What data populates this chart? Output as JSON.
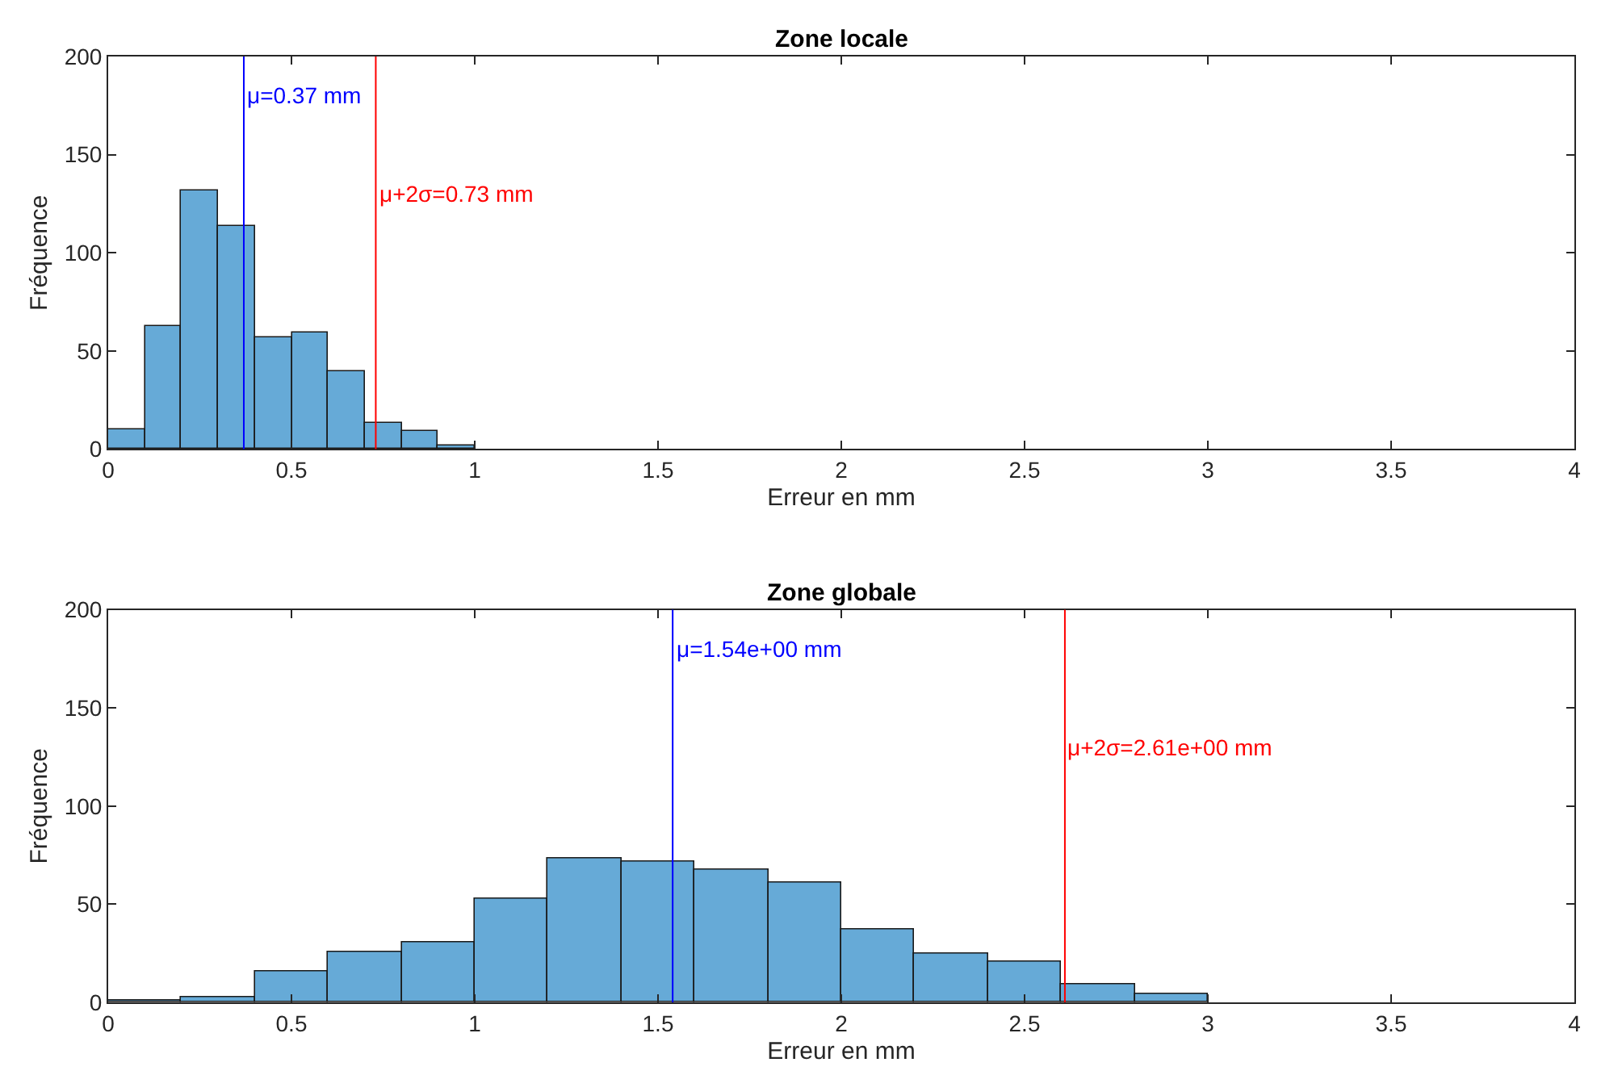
{
  "chart_data": [
    {
      "type": "histogram",
      "title": "Zone locale",
      "xlabel": "Erreur en mm",
      "ylabel": "Fréquence",
      "color": "#66aad7",
      "bins": [
        0,
        0.1,
        0.2,
        0.3,
        0.4,
        0.5,
        0.6,
        0.7,
        0.8,
        0.9,
        1.0
      ],
      "values": [
        10,
        63,
        132,
        114,
        57,
        59,
        40,
        13,
        9,
        2
      ],
      "xlim": [
        0,
        4
      ],
      "xticks": [
        0,
        0.5,
        1,
        1.5,
        2,
        2.5,
        3,
        3.5,
        4
      ],
      "ylim": [
        0,
        200
      ],
      "yticks": [
        0,
        50,
        100,
        150,
        200
      ],
      "ref_lines": [
        {
          "axis": "x",
          "value": 0.37,
          "label": "μ=0.37 mm",
          "color": "#0000ff"
        },
        {
          "axis": "x",
          "value": 0.73,
          "label": "μ+2σ=0.73 mm",
          "color": "#ff0000"
        }
      ]
    },
    {
      "type": "histogram",
      "title": "Zone globale",
      "xlabel": "Erreur en mm",
      "ylabel": "Fréquence",
      "color": "#66aad7",
      "bins": [
        0,
        0.2,
        0.4,
        0.6,
        0.8,
        1.0,
        1.2,
        1.4,
        1.6,
        1.8,
        2.0,
        2.2,
        2.4,
        2.6,
        2.8,
        3.0
      ],
      "values": [
        1,
        3,
        16,
        26,
        31,
        53,
        73,
        72,
        68,
        61,
        37,
        25,
        21,
        9,
        4
      ],
      "xlim": [
        0,
        4
      ],
      "xticks": [
        0,
        0.5,
        1,
        1.5,
        2,
        2.5,
        3,
        3.5,
        4
      ],
      "ylim": [
        0,
        200
      ],
      "yticks": [
        0,
        50,
        100,
        150,
        200
      ],
      "ref_lines": [
        {
          "axis": "x",
          "value": 1.54,
          "label": "μ=1.54e+00 mm",
          "color": "#0000ff"
        },
        {
          "axis": "x",
          "value": 2.61,
          "label": "μ+2σ=2.61e+00 mm",
          "color": "#ff0000"
        }
      ]
    }
  ]
}
